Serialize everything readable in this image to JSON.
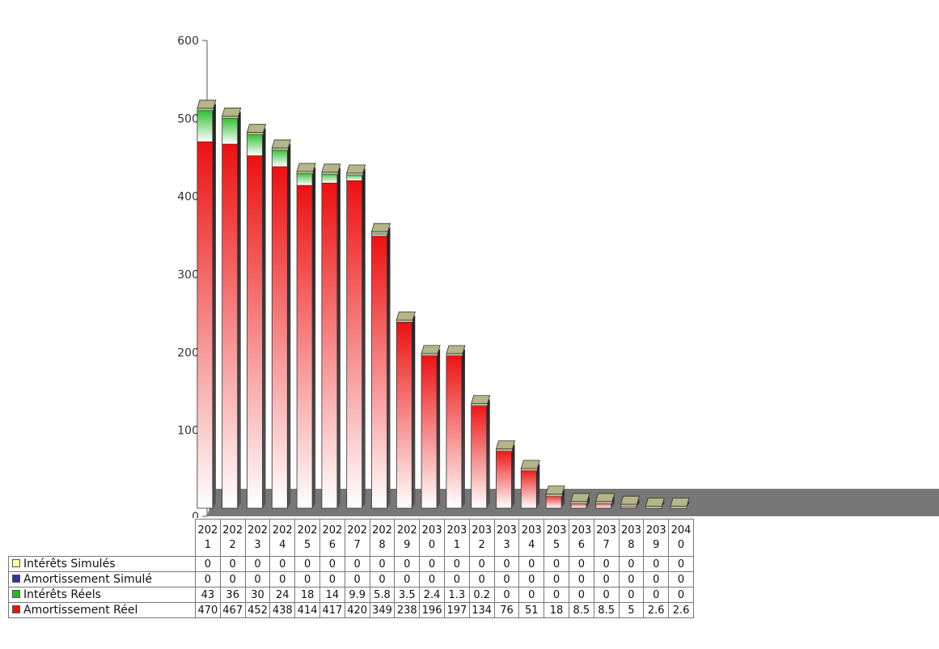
{
  "chart_data": {
    "type": "bar",
    "stacked": true,
    "categories": [
      "2021",
      "2022",
      "2023",
      "2024",
      "2025",
      "2026",
      "2027",
      "2028",
      "2029",
      "2030",
      "2031",
      "2032",
      "2033",
      "2034",
      "2035",
      "2036",
      "2037",
      "2038",
      "2039",
      "2040"
    ],
    "category_labels": [
      [
        "202",
        "1"
      ],
      [
        "202",
        "2"
      ],
      [
        "202",
        "3"
      ],
      [
        "202",
        "4"
      ],
      [
        "202",
        "5"
      ],
      [
        "202",
        "6"
      ],
      [
        "202",
        "7"
      ],
      [
        "202",
        "8"
      ],
      [
        "202",
        "9"
      ],
      [
        "203",
        "0"
      ],
      [
        "203",
        "1"
      ],
      [
        "203",
        "2"
      ],
      [
        "203",
        "3"
      ],
      [
        "203",
        "4"
      ],
      [
        "203",
        "5"
      ],
      [
        "203",
        "6"
      ],
      [
        "203",
        "7"
      ],
      [
        "203",
        "8"
      ],
      [
        "203",
        "9"
      ],
      [
        "204",
        "0"
      ]
    ],
    "yticks": [
      "0",
      "100",
      "200",
      "300",
      "400",
      "500",
      "600"
    ],
    "ylim": [
      0,
      600
    ],
    "grid": false,
    "series": [
      {
        "name": "Intérêts Simulés",
        "color": "#ffff99",
        "values": [
          0,
          0,
          0,
          0,
          0,
          0,
          0,
          0,
          0,
          0,
          0,
          0,
          0,
          0,
          0,
          0,
          0,
          0,
          0,
          0
        ],
        "labels": [
          "0",
          "0",
          "0",
          "0",
          "0",
          "0",
          "0",
          "0",
          "0",
          "0",
          "0",
          "0",
          "0",
          "0",
          "0",
          "0",
          "0",
          "0",
          "0",
          "0"
        ]
      },
      {
        "name": "Amortissement Simulé",
        "color": "#3333aa",
        "values": [
          0,
          0,
          0,
          0,
          0,
          0,
          0,
          0,
          0,
          0,
          0,
          0,
          0,
          0,
          0,
          0,
          0,
          0,
          0,
          0
        ],
        "labels": [
          "0",
          "0",
          "0",
          "0",
          "0",
          "0",
          "0",
          "0",
          "0",
          "0",
          "0",
          "0",
          "0",
          "0",
          "0",
          "0",
          "0",
          "0",
          "0",
          "0"
        ]
      },
      {
        "name": "Intérêts Réels",
        "color": "#22bb22",
        "values": [
          43,
          36,
          30,
          24,
          18,
          14,
          9.9,
          5.8,
          3.5,
          2.4,
          1.3,
          0.2,
          0,
          0,
          0,
          0,
          0,
          0,
          0,
          0
        ],
        "labels": [
          "43",
          "36",
          "30",
          "24",
          "18",
          "14",
          "9.9",
          "5.8",
          "3.5",
          "2.4",
          "1.3",
          "0.2",
          "0",
          "0",
          "0",
          "0",
          "0",
          "0",
          "0",
          "0"
        ]
      },
      {
        "name": "Amortissement Réel",
        "color": "#ee1111",
        "values": [
          470,
          467,
          452,
          438,
          414,
          417,
          420,
          349,
          238,
          196,
          197,
          134,
          76,
          51,
          18,
          8.5,
          8.5,
          5,
          2.6,
          2.6
        ],
        "labels": [
          "470",
          "467",
          "452",
          "438",
          "414",
          "417",
          "420",
          "349",
          "238",
          "196",
          "197",
          "134",
          "76",
          "51",
          "18",
          "8.5",
          "8.5",
          "5",
          "2.6",
          "2.6"
        ]
      }
    ]
  },
  "colors": {
    "floor": "#777777",
    "cap": "#b5b58a",
    "axis": "#555555"
  }
}
